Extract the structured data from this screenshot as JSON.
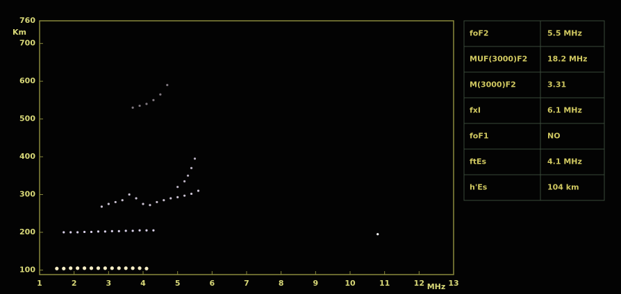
{
  "chart_data": {
    "type": "scatter",
    "x_unit": "MHz",
    "y_unit": "Km",
    "xlim": [
      1,
      13
    ],
    "ylim": [
      88,
      760
    ],
    "xticks": [
      1,
      2,
      3,
      4,
      5,
      6,
      7,
      8,
      9,
      10,
      11,
      12,
      13
    ],
    "yticks": [
      100,
      200,
      300,
      400,
      500,
      600,
      700,
      760
    ],
    "series": [
      {
        "color": "#f4ecc4",
        "x": [
          1.5,
          1.7,
          1.9,
          2.1,
          2.3,
          2.5,
          2.7,
          2.9,
          3.1,
          3.3,
          3.5,
          3.7,
          3.9,
          4.1
        ],
        "values": [
          104,
          104,
          105,
          105,
          105,
          105,
          105,
          105,
          105,
          105,
          105,
          105,
          105,
          104
        ]
      },
      {
        "color": "#d8d0e8",
        "x": [
          1.7,
          1.9,
          2.1,
          2.3,
          2.5,
          2.7,
          2.9,
          3.1,
          3.3,
          3.5,
          3.7,
          3.9,
          4.1,
          4.3
        ],
        "values": [
          200,
          200,
          200,
          201,
          201,
          202,
          202,
          203,
          203,
          204,
          204,
          205,
          205,
          205
        ]
      },
      {
        "color": "#c8c0d0",
        "x": [
          2.8,
          3.0,
          3.2,
          3.4,
          3.6,
          3.8,
          4.0,
          4.2,
          4.4,
          4.6,
          4.8,
          5.0,
          5.2,
          5.4,
          5.6
        ],
        "values": [
          268,
          275,
          280,
          285,
          300,
          290,
          275,
          272,
          280,
          285,
          290,
          293,
          297,
          302,
          310
        ]
      },
      {
        "color": "#b8b0c0",
        "x": [
          5.0,
          5.2,
          5.3,
          5.4,
          5.5
        ],
        "values": [
          320,
          335,
          350,
          370,
          395
        ]
      },
      {
        "color": "#807880",
        "x": [
          3.7,
          3.9,
          4.1,
          4.3,
          4.5,
          4.7
        ],
        "values": [
          530,
          535,
          540,
          550,
          565,
          590
        ]
      },
      {
        "color": "#ffffff",
        "x": [
          10.8
        ],
        "values": [
          195
        ]
      }
    ]
  },
  "table": {
    "rows": [
      [
        "foF2",
        "5.5 MHz"
      ],
      [
        "MUF(3000)F2",
        "18.2 MHz"
      ],
      [
        "M(3000)F2",
        "3.31"
      ],
      [
        "fxI",
        "6.1 MHz"
      ],
      [
        "foF1",
        "NO"
      ],
      [
        "ftEs",
        "4.1 MHz"
      ],
      [
        "h'Es",
        "104 km"
      ]
    ]
  }
}
